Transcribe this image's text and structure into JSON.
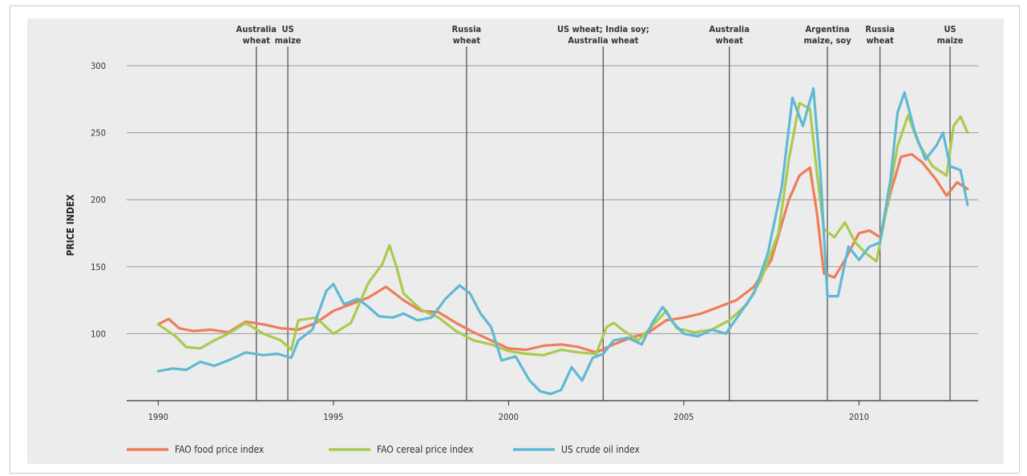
{
  "chart_data": {
    "type": "line",
    "xlabel": "",
    "ylabel": "PRICE INDEX",
    "xlim": [
      1989.1,
      2013.4
    ],
    "ylim": [
      50,
      300
    ],
    "xticks": [
      1990,
      1995,
      2000,
      2005,
      2010
    ],
    "yticks": [
      100,
      150,
      200,
      250,
      300
    ],
    "grid": "horizontal",
    "legend_position": "bottom",
    "events": [
      {
        "x": 1992.8,
        "label": [
          "Australia",
          "wheat"
        ]
      },
      {
        "x": 1993.7,
        "label": [
          "US",
          "maize"
        ]
      },
      {
        "x": 1998.8,
        "label": [
          "Russia",
          "wheat"
        ]
      },
      {
        "x": 2002.7,
        "label": [
          "US wheat; India soy;",
          "Australia wheat"
        ]
      },
      {
        "x": 2006.3,
        "label": [
          "Australia",
          "wheat"
        ]
      },
      {
        "x": 2009.1,
        "label": [
          "Argentina",
          "maize, soy"
        ]
      },
      {
        "x": 2010.6,
        "label": [
          "Russia",
          "wheat"
        ]
      },
      {
        "x": 2012.6,
        "label": [
          "US",
          "maize"
        ]
      }
    ],
    "series": [
      {
        "name": "FAO food price index",
        "color": "#ee7d5a",
        "points": [
          [
            1990.0,
            107
          ],
          [
            1990.3,
            111
          ],
          [
            1990.6,
            104
          ],
          [
            1991.0,
            102
          ],
          [
            1991.5,
            103
          ],
          [
            1992.0,
            101
          ],
          [
            1992.5,
            109
          ],
          [
            1993.0,
            107
          ],
          [
            1993.5,
            104
          ],
          [
            1994.0,
            103
          ],
          [
            1994.5,
            108
          ],
          [
            1995.0,
            117
          ],
          [
            1995.5,
            122
          ],
          [
            1996.0,
            127
          ],
          [
            1996.5,
            135
          ],
          [
            1997.0,
            125
          ],
          [
            1997.5,
            117
          ],
          [
            1998.0,
            116
          ],
          [
            1998.5,
            108
          ],
          [
            1999.0,
            101
          ],
          [
            1999.5,
            95
          ],
          [
            2000.0,
            89
          ],
          [
            2000.5,
            88
          ],
          [
            2001.0,
            91
          ],
          [
            2001.5,
            92
          ],
          [
            2002.0,
            90
          ],
          [
            2002.5,
            86
          ],
          [
            2003.0,
            92
          ],
          [
            2003.5,
            97
          ],
          [
            2004.0,
            101
          ],
          [
            2004.5,
            110
          ],
          [
            2005.0,
            112
          ],
          [
            2005.5,
            115
          ],
          [
            2006.0,
            120
          ],
          [
            2006.5,
            125
          ],
          [
            2007.0,
            135
          ],
          [
            2007.5,
            155
          ],
          [
            2008.0,
            200
          ],
          [
            2008.3,
            218
          ],
          [
            2008.6,
            224
          ],
          [
            2008.8,
            190
          ],
          [
            2009.0,
            145
          ],
          [
            2009.3,
            142
          ],
          [
            2009.6,
            155
          ],
          [
            2010.0,
            175
          ],
          [
            2010.3,
            177
          ],
          [
            2010.6,
            172
          ],
          [
            2010.9,
            205
          ],
          [
            2011.2,
            232
          ],
          [
            2011.5,
            234
          ],
          [
            2011.8,
            228
          ],
          [
            2012.2,
            215
          ],
          [
            2012.5,
            203
          ],
          [
            2012.8,
            213
          ],
          [
            2013.1,
            208
          ]
        ]
      },
      {
        "name": "FAO cereal price index",
        "color": "#a9cb4e",
        "points": [
          [
            1990.0,
            107
          ],
          [
            1990.5,
            98
          ],
          [
            1990.8,
            90
          ],
          [
            1991.2,
            89
          ],
          [
            1991.6,
            95
          ],
          [
            1992.0,
            100
          ],
          [
            1992.5,
            108
          ],
          [
            1993.0,
            100
          ],
          [
            1993.5,
            95
          ],
          [
            1993.8,
            88
          ],
          [
            1994.0,
            110
          ],
          [
            1994.5,
            112
          ],
          [
            1995.0,
            100
          ],
          [
            1995.5,
            108
          ],
          [
            1996.0,
            138
          ],
          [
            1996.4,
            152
          ],
          [
            1996.6,
            166
          ],
          [
            1996.8,
            150
          ],
          [
            1997.0,
            130
          ],
          [
            1997.5,
            118
          ],
          [
            1998.0,
            112
          ],
          [
            1998.5,
            102
          ],
          [
            1999.0,
            95
          ],
          [
            1999.5,
            92
          ],
          [
            2000.0,
            87
          ],
          [
            2000.5,
            85
          ],
          [
            2001.0,
            84
          ],
          [
            2001.5,
            88
          ],
          [
            2002.0,
            86
          ],
          [
            2002.5,
            85
          ],
          [
            2002.8,
            105
          ],
          [
            2003.0,
            108
          ],
          [
            2003.3,
            102
          ],
          [
            2003.7,
            95
          ],
          [
            2004.0,
            103
          ],
          [
            2004.5,
            117
          ],
          [
            2004.8,
            104
          ],
          [
            2005.3,
            101
          ],
          [
            2005.8,
            103
          ],
          [
            2006.3,
            110
          ],
          [
            2006.8,
            122
          ],
          [
            2007.2,
            140
          ],
          [
            2007.7,
            175
          ],
          [
            2008.0,
            230
          ],
          [
            2008.3,
            272
          ],
          [
            2008.6,
            268
          ],
          [
            2008.8,
            220
          ],
          [
            2009.0,
            178
          ],
          [
            2009.3,
            172
          ],
          [
            2009.6,
            183
          ],
          [
            2009.9,
            168
          ],
          [
            2010.2,
            160
          ],
          [
            2010.5,
            154
          ],
          [
            2010.8,
            195
          ],
          [
            2011.1,
            240
          ],
          [
            2011.4,
            263
          ],
          [
            2011.7,
            242
          ],
          [
            2012.1,
            225
          ],
          [
            2012.5,
            218
          ],
          [
            2012.7,
            255
          ],
          [
            2012.9,
            262
          ],
          [
            2013.1,
            250
          ]
        ]
      },
      {
        "name": "US crude oil index",
        "color": "#5fb9d4",
        "points": [
          [
            1990.0,
            72
          ],
          [
            1990.4,
            74
          ],
          [
            1990.8,
            73
          ],
          [
            1991.2,
            79
          ],
          [
            1991.6,
            76
          ],
          [
            1992.0,
            80
          ],
          [
            1992.5,
            86
          ],
          [
            1993.0,
            84
          ],
          [
            1993.4,
            85
          ],
          [
            1993.8,
            82
          ],
          [
            1994.0,
            95
          ],
          [
            1994.4,
            103
          ],
          [
            1994.8,
            132
          ],
          [
            1995.0,
            137
          ],
          [
            1995.3,
            122
          ],
          [
            1995.7,
            126
          ],
          [
            1996.0,
            120
          ],
          [
            1996.3,
            113
          ],
          [
            1996.7,
            112
          ],
          [
            1997.0,
            115
          ],
          [
            1997.4,
            110
          ],
          [
            1997.8,
            112
          ],
          [
            1998.2,
            126
          ],
          [
            1998.6,
            136
          ],
          [
            1998.9,
            130
          ],
          [
            1999.2,
            115
          ],
          [
            1999.5,
            105
          ],
          [
            1999.8,
            80
          ],
          [
            2000.2,
            83
          ],
          [
            2000.6,
            65
          ],
          [
            2000.9,
            57
          ],
          [
            2001.2,
            55
          ],
          [
            2001.5,
            58
          ],
          [
            2001.8,
            75
          ],
          [
            2002.1,
            65
          ],
          [
            2002.4,
            82
          ],
          [
            2002.7,
            85
          ],
          [
            2003.0,
            95
          ],
          [
            2003.4,
            97
          ],
          [
            2003.8,
            92
          ],
          [
            2004.1,
            108
          ],
          [
            2004.4,
            120
          ],
          [
            2004.7,
            108
          ],
          [
            2005.0,
            100
          ],
          [
            2005.4,
            98
          ],
          [
            2005.8,
            103
          ],
          [
            2006.2,
            100
          ],
          [
            2006.6,
            115
          ],
          [
            2007.0,
            130
          ],
          [
            2007.4,
            160
          ],
          [
            2007.8,
            210
          ],
          [
            2008.1,
            276
          ],
          [
            2008.4,
            255
          ],
          [
            2008.7,
            283
          ],
          [
            2008.9,
            220
          ],
          [
            2009.1,
            128
          ],
          [
            2009.4,
            128
          ],
          [
            2009.7,
            165
          ],
          [
            2010.0,
            155
          ],
          [
            2010.3,
            165
          ],
          [
            2010.6,
            168
          ],
          [
            2010.9,
            215
          ],
          [
            2011.1,
            265
          ],
          [
            2011.3,
            280
          ],
          [
            2011.6,
            250
          ],
          [
            2011.9,
            230
          ],
          [
            2012.2,
            240
          ],
          [
            2012.4,
            250
          ],
          [
            2012.6,
            225
          ],
          [
            2012.9,
            222
          ],
          [
            2013.1,
            196
          ]
        ]
      }
    ]
  }
}
